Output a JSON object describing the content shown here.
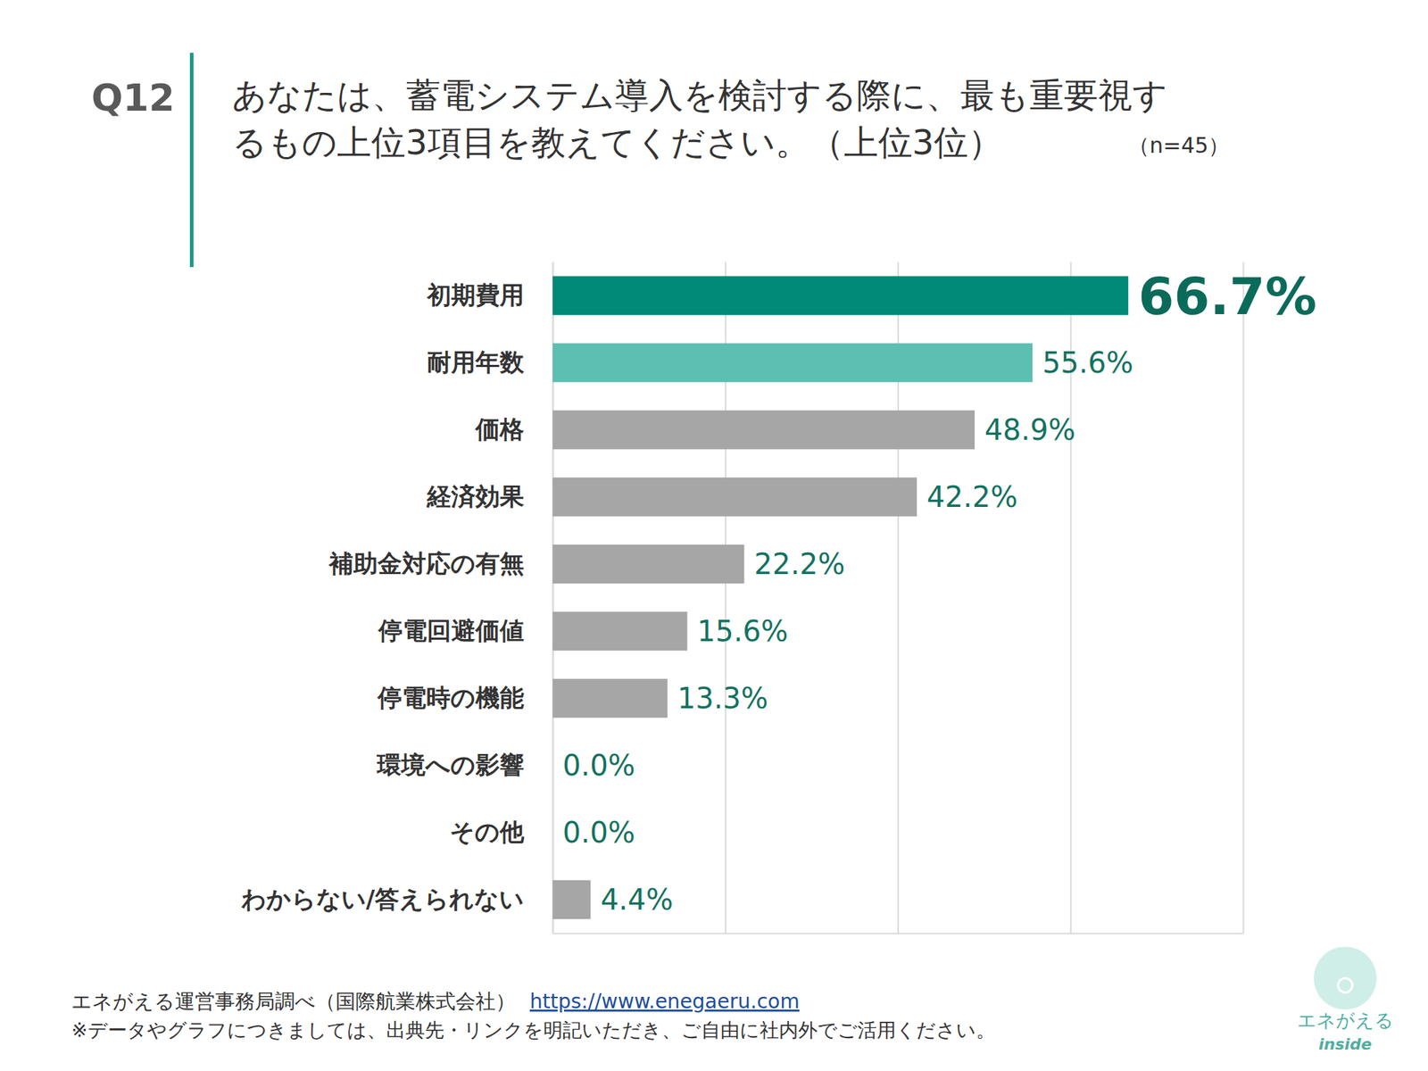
{
  "chart_data": {
    "type": "bar",
    "orientation": "horizontal",
    "question_number": "Q12",
    "title": [
      "あなたは、蓄電システム導入を検討する際に、最も重要視す",
      "るもの上位3項目を教えてください。（上位3位）"
    ],
    "sample_size": "（n=45）",
    "categories": [
      "初期費用",
      "耐用年数",
      "価格",
      "経済効果",
      "補助金対応の有無",
      "停電回避価値",
      "停電時の機能",
      "環境への影響",
      "その他",
      "わからない/答えられない"
    ],
    "values": [
      66.7,
      55.6,
      48.9,
      42.2,
      22.2,
      15.6,
      13.3,
      0.0,
      0.0,
      4.4
    ],
    "value_labels": [
      "66.7%",
      "55.6%",
      "48.9%",
      "42.2%",
      "22.2%",
      "15.6%",
      "13.3%",
      "0.0%",
      "0.0%",
      "4.4%"
    ],
    "colors": [
      "#008a78",
      "#5dbfb2",
      "#a6a6a6",
      "#a6a6a6",
      "#a6a6a6",
      "#a6a6a6",
      "#a6a6a6",
      "#a6a6a6",
      "#a6a6a6",
      "#a6a6a6"
    ],
    "data_labels": true,
    "xlim": [
      0,
      80
    ],
    "xticks": [
      0,
      20,
      40,
      60,
      80
    ],
    "grid": true,
    "tick_labels": "y",
    "source": "エネがえる運営事務局調べ（国際航業株式会社）",
    "source_url": "https://www.enegaeru.com",
    "note": "※データやグラフにつきましては、出典先・リンクを明記いただき、ご自由に社内外でご活用ください。",
    "logo": [
      "エネがえる",
      "inside"
    ]
  }
}
